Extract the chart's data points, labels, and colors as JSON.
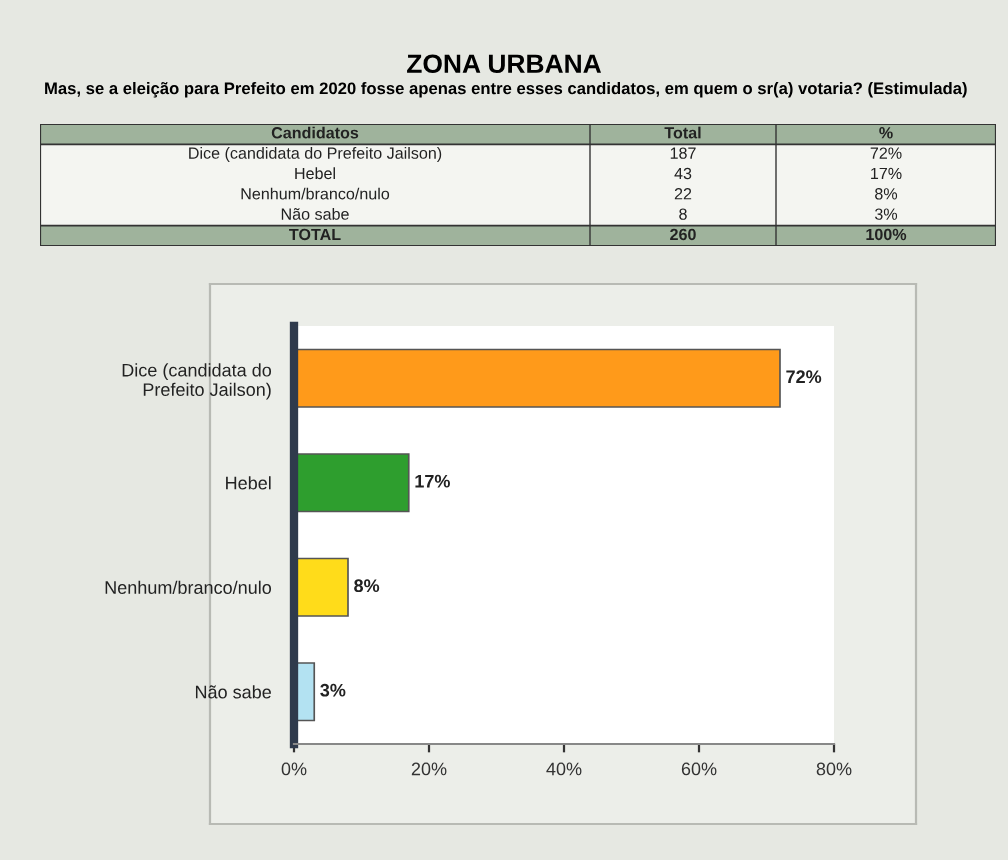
{
  "chart_data": {
    "type": "bar",
    "orientation": "horizontal",
    "title": "ZONA URBANA",
    "subtitle": "Mas, se a eleição para Prefeito em 2020 fosse apenas entre esses candidatos, em quem o sr(a) votaria? (Estimulada)",
    "categories": [
      "Dice (candidata do\nPrefeito Jailson)",
      "Hebel",
      "Nenhum/branco/nulo",
      "Não sabe"
    ],
    "values": [
      72,
      17,
      8,
      3
    ],
    "colors": [
      "#ff9a1a",
      "#2e9e2e",
      "#ffdc1a",
      "#b3e2f2"
    ],
    "value_labels": [
      "72%",
      "17%",
      "8%",
      "3%"
    ],
    "xlim": [
      0,
      80
    ],
    "xticks": [
      {
        "value": 0,
        "label": "0%"
      },
      {
        "value": 20,
        "label": "20%"
      },
      {
        "value": 40,
        "label": "40%"
      },
      {
        "value": 60,
        "label": "60%"
      },
      {
        "value": 80,
        "label": "80%"
      }
    ],
    "annotations": [
      "Candidatos",
      "Total",
      "%",
      "Dice (candidata do Prefeito Jailson)",
      "187",
      "72%",
      "Hebel",
      "43",
      "17%",
      "Nenhum/branco/nulo",
      "22",
      "8%",
      "Não sabe",
      "8",
      "3%",
      "TOTAL",
      "260",
      "100%"
    ]
  }
}
